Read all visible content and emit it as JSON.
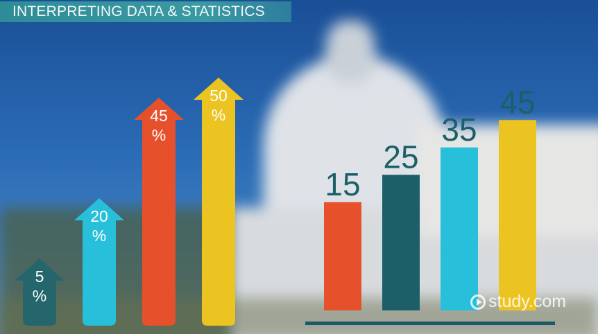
{
  "header": {
    "title": "INTERPRETING DATA & STATISTICS"
  },
  "watermark": {
    "text": "study.com"
  },
  "chart_data": [
    {
      "type": "bar",
      "style": "arrows",
      "categories": [
        "5 %",
        "20 %",
        "45 %",
        "50 %"
      ],
      "values": [
        5,
        20,
        45,
        50
      ],
      "unit": "%",
      "colors": [
        "#24666b",
        "#27bfd9",
        "#e6502b",
        "#ebc422"
      ]
    },
    {
      "type": "bar",
      "categories": [
        "15",
        "25",
        "35",
        "45"
      ],
      "values": [
        15,
        25,
        35,
        45
      ],
      "colors": [
        "#e6502b",
        "#1d5f68",
        "#27bfd9",
        "#ebc422"
      ],
      "label_color": "#1d5f68"
    }
  ]
}
